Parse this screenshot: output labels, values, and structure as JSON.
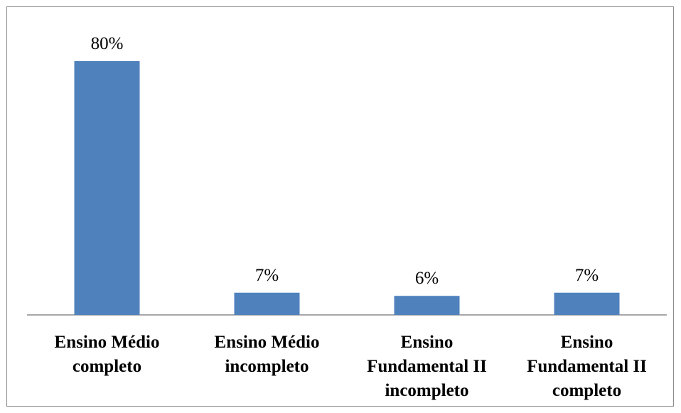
{
  "chart_data": {
    "type": "bar",
    "categories": [
      [
        "Ensino Médio",
        "completo"
      ],
      [
        "Ensino Médio",
        "incompleto"
      ],
      [
        "Ensino",
        "Fundamental II",
        "incompleto"
      ],
      [
        "Ensino",
        "Fundamental II",
        "completo"
      ]
    ],
    "values": [
      80,
      7,
      6,
      7
    ],
    "data_labels": [
      "80%",
      "7%",
      "6%",
      "7%"
    ],
    "title": "",
    "xlabel": "",
    "ylabel": "",
    "ylim": [
      0,
      90
    ],
    "grid": false,
    "legend": "none",
    "bar_color": "#4f81bd",
    "axis_color": "#8c8c8c"
  }
}
